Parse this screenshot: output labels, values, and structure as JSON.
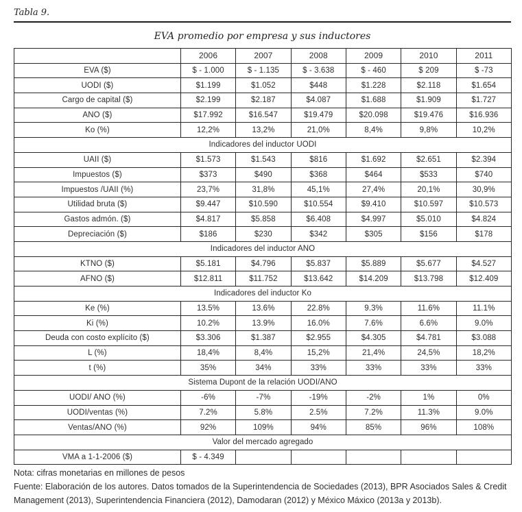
{
  "page": {
    "table_label": "Tabla 9.",
    "title": "EVA promedio por empresa y sus inductores",
    "note": "Nota: cifras monetarias en millones de pesos",
    "source": "Fuente: Elaboración de los autores. Datos tomados de la Superintendencia de Sociedades (2013), BPR Asociados Sales & Credit Management (2013), Superintendencia Financiera (2012), Damodaran (2012) y México Máxico (2013a y 2013b)."
  },
  "chart_data": {
    "type": "table",
    "title": "EVA promedio por empresa y sus inductores",
    "columns": [
      "",
      "2006",
      "2007",
      "2008",
      "2009",
      "2010",
      "2011"
    ],
    "rows": [
      {
        "kind": "data",
        "label": "EVA ($)",
        "values": [
          "$ - 1.000",
          "$ - 1.135",
          "$ - 3.638",
          "$ - 460",
          "$ 209",
          "$ -73"
        ]
      },
      {
        "kind": "data",
        "label": "UODI ($)",
        "values": [
          "$1.199",
          "$1.052",
          "$448",
          "$1.228",
          "$2.118",
          "$1.654"
        ]
      },
      {
        "kind": "data",
        "label": "Cargo de capital ($)",
        "values": [
          "$2.199",
          "$2.187",
          "$4.087",
          "$1.688",
          "$1.909",
          "$1.727"
        ]
      },
      {
        "kind": "data",
        "label": "ANO ($)",
        "values": [
          "$17.992",
          "$16.547",
          "$19.479",
          "$20.098",
          "$19.476",
          "$16.936"
        ]
      },
      {
        "kind": "data",
        "label": "Ko (%)",
        "values": [
          "12,2%",
          "13,2%",
          "21,0%",
          "8,4%",
          "9,8%",
          "10,2%"
        ]
      },
      {
        "kind": "section",
        "label": "Indicadores del inductor UODI"
      },
      {
        "kind": "data",
        "label": "UAII ($)",
        "values": [
          "$1.573",
          "$1.543",
          "$816",
          "$1.692",
          "$2.651",
          "$2.394"
        ]
      },
      {
        "kind": "data",
        "label": "Impuestos ($)",
        "values": [
          "$373",
          "$490",
          "$368",
          "$464",
          "$533",
          "$740"
        ]
      },
      {
        "kind": "data",
        "label": "Impuestos /UAII (%)",
        "values": [
          "23,7%",
          "31,8%",
          "45,1%",
          "27,4%",
          "20,1%",
          "30,9%"
        ]
      },
      {
        "kind": "data",
        "label": "Utilidad bruta ($)",
        "values": [
          "$9.447",
          "$10.590",
          "$10.554",
          "$9.410",
          "$10.597",
          "$10.573"
        ]
      },
      {
        "kind": "data",
        "label": "Gastos admón. ($)",
        "values": [
          "$4.817",
          "$5.858",
          "$6.408",
          "$4.997",
          "$5.010",
          "$4.824"
        ]
      },
      {
        "kind": "data",
        "label": "Depreciación ($)",
        "values": [
          "$186",
          "$230",
          "$342",
          "$305",
          "$156",
          "$178"
        ]
      },
      {
        "kind": "section",
        "label": "Indicadores del inductor ANO"
      },
      {
        "kind": "data",
        "label": "KTNO ($)",
        "values": [
          "$5.181",
          "$4.796",
          "$5.837",
          "$5.889",
          "$5.677",
          "$4.527"
        ]
      },
      {
        "kind": "data",
        "label": "AFNO ($)",
        "values": [
          "$12.811",
          "$11.752",
          "$13.642",
          "$14.209",
          "$13.798",
          "$12.409"
        ]
      },
      {
        "kind": "section",
        "label": "Indicadores del inductor Ko"
      },
      {
        "kind": "data",
        "label": "Ke (%)",
        "values": [
          "13.5%",
          "13.6%",
          "22.8%",
          "9.3%",
          "11.6%",
          "11.1%"
        ]
      },
      {
        "kind": "data",
        "label": "Ki (%)",
        "values": [
          "10.2%",
          "13.9%",
          "16.0%",
          "7.6%",
          "6.6%",
          "9.0%"
        ]
      },
      {
        "kind": "data",
        "label": "Deuda con costo explícito ($)",
        "values": [
          "$3.306",
          "$1.387",
          "$2.955",
          "$4.305",
          "$4.781",
          "$3.088"
        ]
      },
      {
        "kind": "data",
        "label": "L (%)",
        "values": [
          "18,4%",
          "8,4%",
          "15,2%",
          "21,4%",
          "24,5%",
          "18,2%"
        ]
      },
      {
        "kind": "data",
        "label": "t (%)",
        "values": [
          "35%",
          "34%",
          "33%",
          "33%",
          "33%",
          "33%"
        ]
      },
      {
        "kind": "section",
        "label": "Sistema Dupont de la relación UODI/ANO"
      },
      {
        "kind": "data",
        "label": "UODI/ ANO (%)",
        "values": [
          "-6%",
          "-7%",
          "-19%",
          "-2%",
          "1%",
          "0%"
        ]
      },
      {
        "kind": "data",
        "label": "UODI/ventas (%)",
        "values": [
          "7.2%",
          "5.8%",
          "2.5%",
          "7.2%",
          "11.3%",
          "9.0%"
        ]
      },
      {
        "kind": "data",
        "label": "Ventas/ANO (%)",
        "values": [
          "92%",
          "109%",
          "94%",
          "85%",
          "96%",
          "108%"
        ]
      },
      {
        "kind": "section",
        "label": "Valor del mercado agregado"
      },
      {
        "kind": "data",
        "label": "VMA a 1-1-2006 ($)",
        "values": [
          "$ - 4.349",
          "",
          "",
          "",
          "",
          ""
        ]
      }
    ]
  }
}
